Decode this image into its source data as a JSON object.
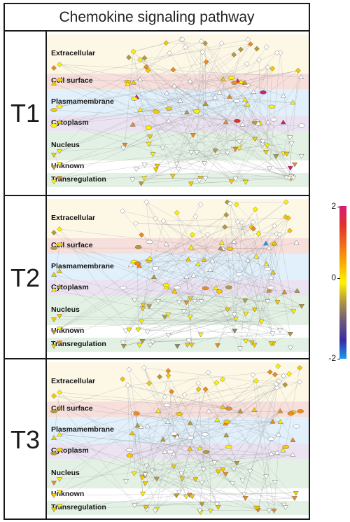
{
  "title": "Chemokine signaling pathway",
  "panels": [
    {
      "label": "T1"
    },
    {
      "label": "T2"
    },
    {
      "label": "T3"
    }
  ],
  "compartments": [
    {
      "label": "Extracellular",
      "color": "#fdf8e6"
    },
    {
      "label": "Cell surface",
      "color": "#f7dfdc"
    },
    {
      "label": "Plasmamembrane",
      "color": "#e1f0fb"
    },
    {
      "label": "Cytoplasm",
      "color": "#ebe3f2"
    },
    {
      "label": "Nucleus",
      "color": "#e3f1e4"
    },
    {
      "label": "Unknown",
      "color": "#ffffff"
    },
    {
      "label": "Transregulation",
      "color": "#e3f1e4"
    }
  ],
  "legend": {
    "max_label": "2",
    "mid_label": "0",
    "min_label": "-2",
    "colors": [
      "#d81b7a",
      "#e0302a",
      "#f06a1a",
      "#f8b000",
      "#fff200",
      "#b59a3c",
      "#6d5a7a",
      "#3a2aa0",
      "#1a9af0"
    ]
  },
  "node_colors": {
    "neutral": "#ffffff",
    "up_low": "#fff200",
    "up_mid": "#f8c800",
    "up_high": "#f08a1a",
    "strong": "#e0302a",
    "max": "#d81b7a",
    "down_low": "#b59a3c",
    "down_mid": "#8a8a5a",
    "min": "#1a9af0"
  }
}
